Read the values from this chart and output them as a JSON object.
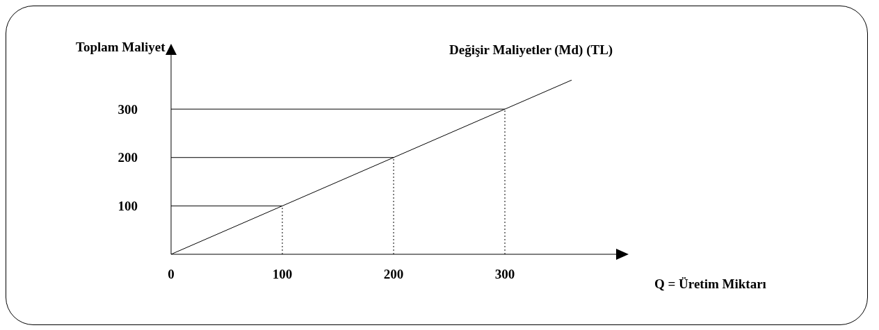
{
  "chart_data": {
    "type": "line",
    "xlabel": "Q = Üretim Miktarı",
    "ylabel": "Toplam Maliyet",
    "xlim": [
      0,
      400
    ],
    "xticks": [
      0,
      100,
      200,
      300
    ],
    "ylim": [
      0,
      415
    ],
    "yticks": [
      100,
      200,
      300
    ],
    "grid": false,
    "legend": false,
    "marker": "none",
    "series": [
      {
        "name": "Değişir Maliyetler (Md) (TL)",
        "color": "#000000",
        "x": [
          0,
          360
        ],
        "values": [
          0,
          360
        ]
      },
      {
        "color": "#000000",
        "x": [
          0,
          100
        ],
        "values": [
          100,
          100
        ]
      },
      {
        "color": "#000000",
        "x": [
          0,
          200
        ],
        "values": [
          200,
          200
        ]
      },
      {
        "color": "#000000",
        "x": [
          0,
          300
        ],
        "values": [
          300,
          300
        ]
      },
      {
        "color": "#000000",
        "line_style": "dotted",
        "x": [
          100,
          100
        ],
        "values": [
          0,
          100
        ]
      },
      {
        "color": "#000000",
        "line_style": "dotted",
        "x": [
          200,
          200
        ],
        "values": [
          0,
          200
        ]
      },
      {
        "color": "#000000",
        "line_style": "dotted",
        "x": [
          300,
          300
        ],
        "values": [
          0,
          300
        ]
      }
    ]
  }
}
